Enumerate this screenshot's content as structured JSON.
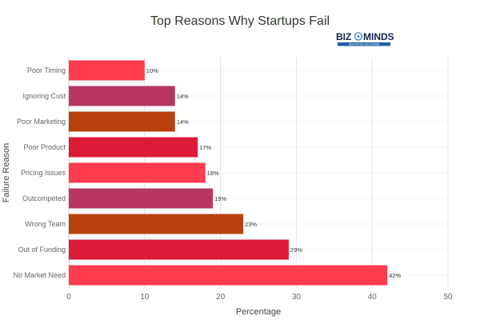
{
  "logo": {
    "left": "BIZ",
    "right": "MINDS",
    "tagline": "INNOVATIVE SOLUTIONS"
  },
  "chart_data": {
    "type": "bar",
    "orientation": "horizontal",
    "title": "Top Reasons Why Startups Fail",
    "xlabel": "Percentage",
    "ylabel": "Failure Reason",
    "xlim": [
      0,
      50
    ],
    "xticks": [
      0,
      10,
      20,
      30,
      40,
      50
    ],
    "grid": true,
    "legend": "none",
    "categories": [
      "No Market Need",
      "Out of Funding",
      "Wrong Team",
      "Outcompeted",
      "Pricing Issues",
      "Poor Product",
      "Poor Marketing",
      "Ignoring Cust",
      "Poor Timing"
    ],
    "values": [
      42,
      29,
      23,
      19,
      18,
      17,
      14,
      14,
      10
    ],
    "value_labels": [
      "42%",
      "29%",
      "23%",
      "19%",
      "18%",
      "17%",
      "14%",
      "14%",
      "10%"
    ],
    "colors": [
      "#ff3b4e",
      "#dc1a36",
      "#b8400d",
      "#b83564",
      "#ff3b4e",
      "#dc1a36",
      "#b8400d",
      "#b83564",
      "#ff3b4e"
    ]
  }
}
